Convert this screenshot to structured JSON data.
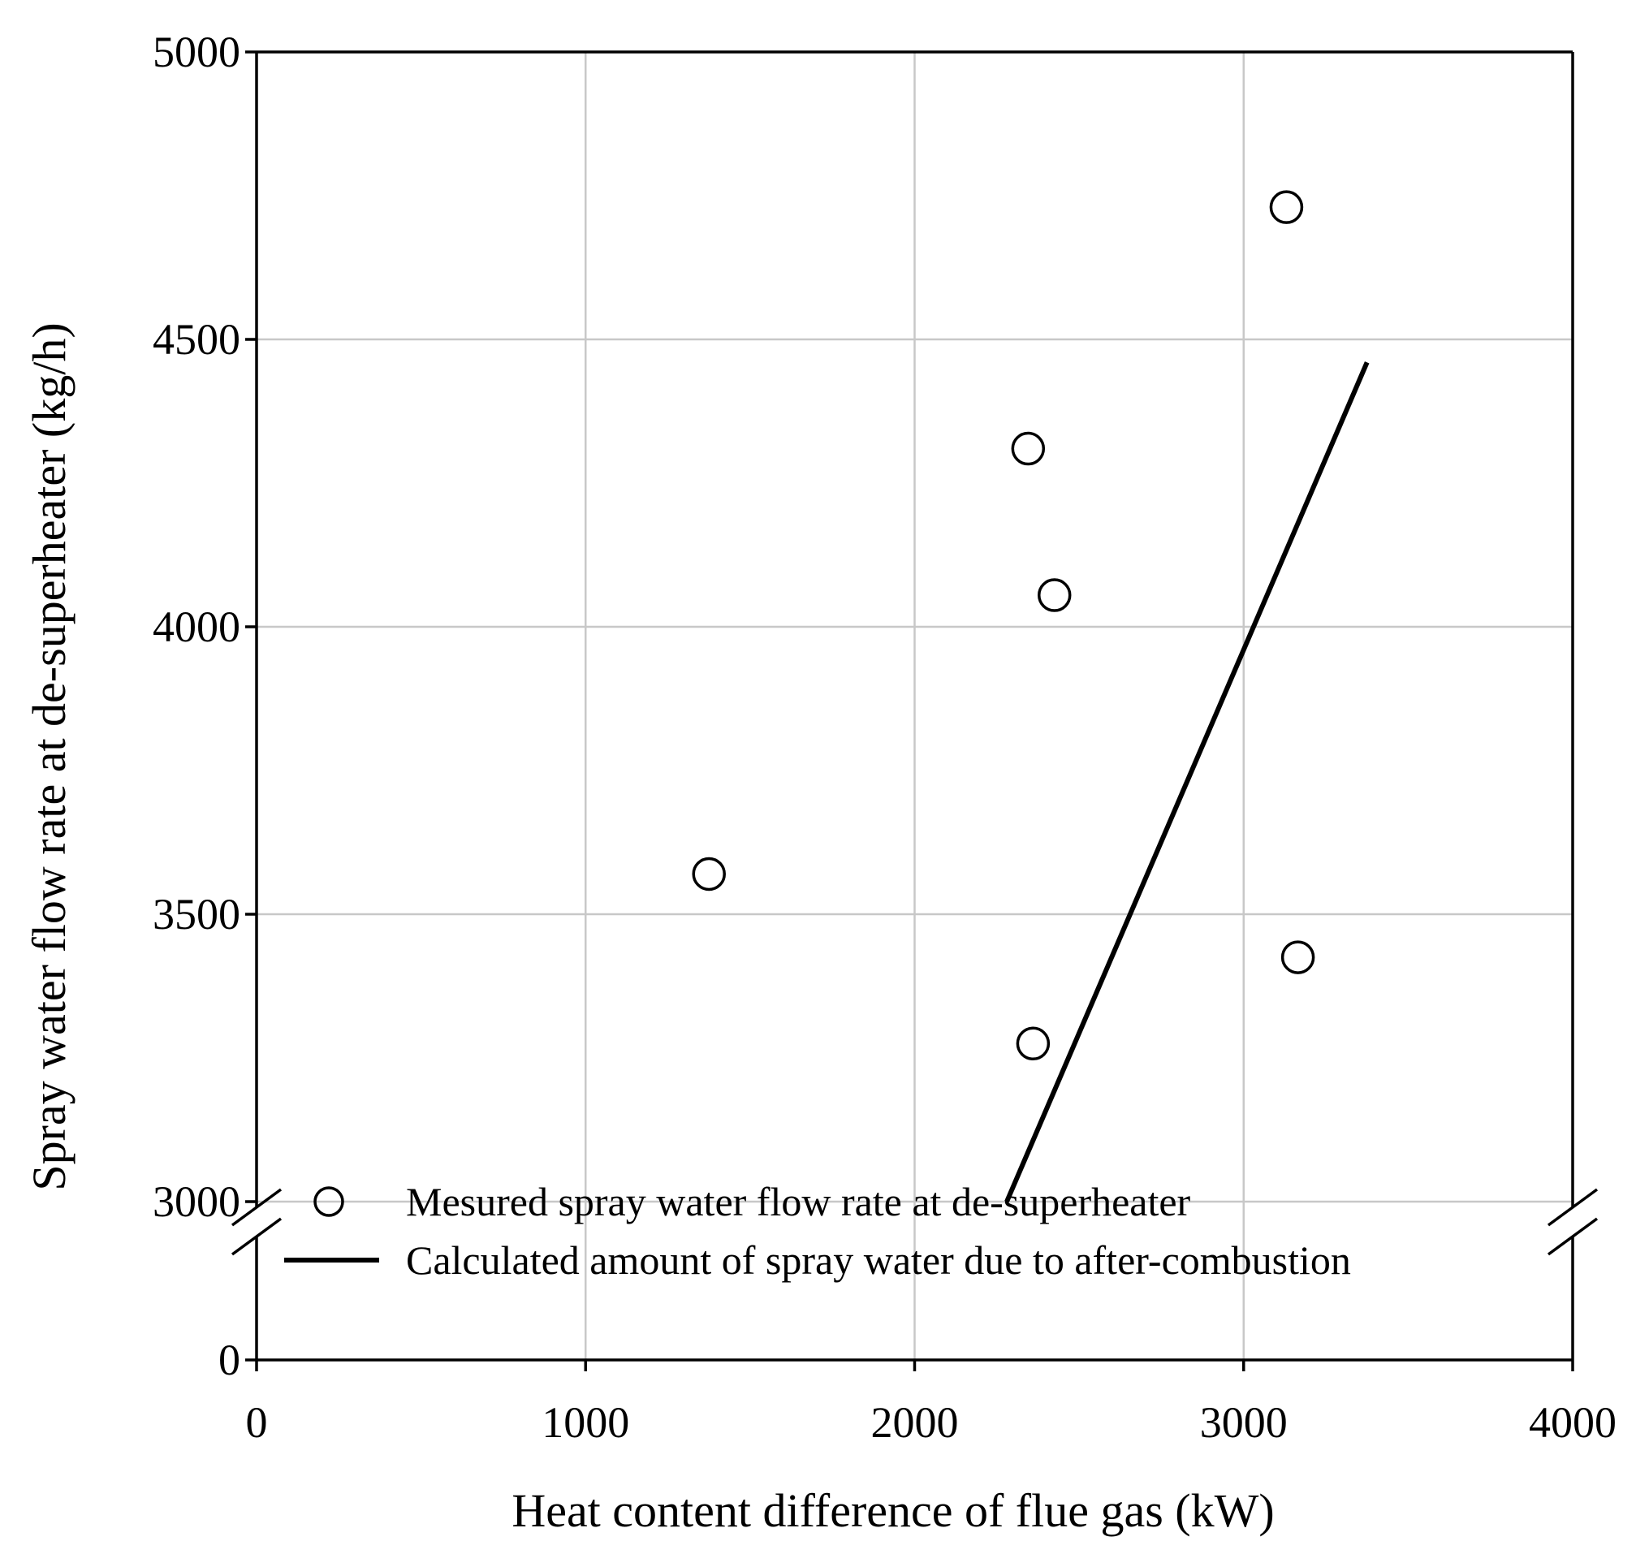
{
  "chart_data": {
    "type": "scatter",
    "title": "",
    "xlabel": "Heat content difference of flue gas (kW)",
    "ylabel": "Spray water flow rate at de-superheater (kg/h)",
    "xlim": [
      0,
      4000
    ],
    "ylim": [
      3000,
      5000
    ],
    "y_axis_break": {
      "lower_value": 0,
      "upper_start": 3000
    },
    "x_ticks": [
      "0",
      "1000",
      "2000",
      "3000",
      "4000"
    ],
    "y_ticks": [
      "0",
      "3000",
      "3500",
      "4000",
      "4500",
      "5000"
    ],
    "grid": true,
    "legend_position": "bottom-left",
    "series": [
      {
        "name": "Mesured spray water flow rate at de-superheater",
        "kind": "scatter",
        "marker": "open-circle",
        "points": [
          {
            "x": 1375,
            "y": 3570
          },
          {
            "x": 2345,
            "y": 4310
          },
          {
            "x": 2425,
            "y": 4055
          },
          {
            "x": 2360,
            "y": 3275
          },
          {
            "x": 3130,
            "y": 4730
          },
          {
            "x": 3165,
            "y": 3425
          }
        ]
      },
      {
        "name": "Calculated amount of spray water due to after-combustion",
        "kind": "line",
        "points": [
          {
            "x": 2280,
            "y": 3000
          },
          {
            "x": 3375,
            "y": 4460
          }
        ]
      }
    ]
  }
}
